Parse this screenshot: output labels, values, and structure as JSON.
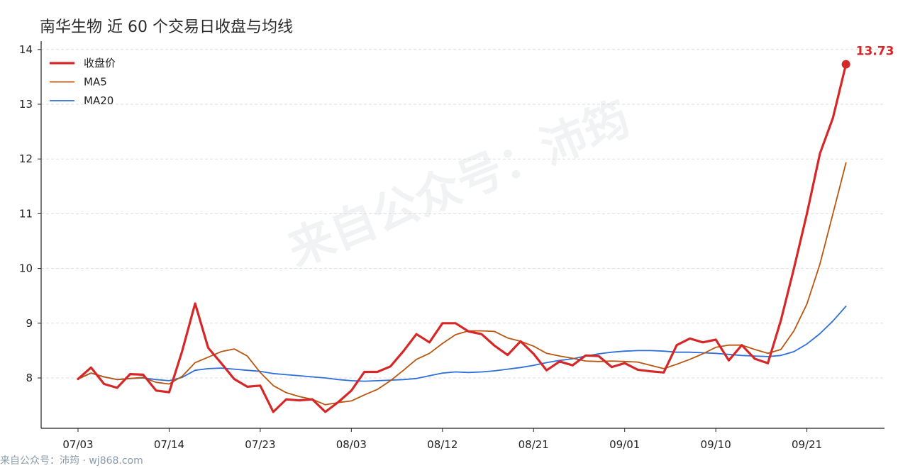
{
  "title": "南华生物 近 60 个交易日收盘与均线",
  "watermark": "来自公众号：沛筠",
  "footer": "来自公众号：沛筠 · wj868.com",
  "colors": {
    "close": "#d62728",
    "ma5": "#b8560f",
    "ma20": "#2f6fdb",
    "grid": "#dddddd",
    "axis": "#222222"
  },
  "chart_data": {
    "type": "line",
    "title": "南华生物 近 60 个交易日收盘与均线",
    "xlabel": "",
    "ylabel": "",
    "ylim": [
      7.1,
      14.1
    ],
    "yticks": [
      8,
      9,
      10,
      11,
      12,
      13,
      14
    ],
    "xticks": [
      {
        "index": 0,
        "label": "07/03"
      },
      {
        "index": 7,
        "label": "07/14"
      },
      {
        "index": 14,
        "label": "07/23"
      },
      {
        "index": 21,
        "label": "08/03"
      },
      {
        "index": 28,
        "label": "08/12"
      },
      {
        "index": 35,
        "label": "08/21"
      },
      {
        "index": 42,
        "label": "09/01"
      },
      {
        "index": 49,
        "label": "09/10"
      },
      {
        "index": 56,
        "label": "09/21"
      }
    ],
    "grid": "horizontal-dashed",
    "legend_position": "top-left",
    "last_value_label": "13.73",
    "series": [
      {
        "name": "收盘价",
        "values": [
          7.98,
          8.19,
          7.89,
          7.82,
          8.07,
          8.06,
          7.77,
          7.74,
          8.49,
          9.36,
          8.55,
          8.27,
          7.98,
          7.84,
          7.86,
          7.38,
          7.61,
          7.59,
          7.61,
          7.38,
          7.56,
          7.77,
          8.11,
          8.11,
          8.21,
          8.49,
          8.8,
          8.65,
          9.0,
          9.0,
          8.85,
          8.8,
          8.59,
          8.42,
          8.67,
          8.44,
          8.14,
          8.3,
          8.23,
          8.41,
          8.4,
          8.2,
          8.27,
          8.15,
          8.12,
          8.1,
          8.6,
          8.72,
          8.65,
          8.7,
          8.32,
          8.6,
          8.35,
          8.27,
          9.05,
          10.0,
          11.0,
          12.1,
          12.75,
          13.73
        ]
      },
      {
        "name": "MA5",
        "values": [
          7.98,
          8.09,
          8.02,
          7.97,
          7.99,
          8.01,
          7.92,
          7.89,
          8.03,
          8.28,
          8.38,
          8.48,
          8.53,
          8.4,
          8.1,
          7.86,
          7.73,
          7.66,
          7.61,
          7.51,
          7.55,
          7.58,
          7.69,
          7.79,
          7.95,
          8.14,
          8.34,
          8.45,
          8.63,
          8.79,
          8.86,
          8.86,
          8.85,
          8.73,
          8.67,
          8.58,
          8.45,
          8.4,
          8.36,
          8.31,
          8.3,
          8.31,
          8.3,
          8.29,
          8.23,
          8.17,
          8.25,
          8.34,
          8.44,
          8.56,
          8.6,
          8.6,
          8.52,
          8.45,
          8.52,
          8.86,
          9.35,
          10.08,
          11.0,
          11.93
        ]
      },
      {
        "name": "MA20",
        "values": [
          7.98,
          8.09,
          8.02,
          7.97,
          7.99,
          8.0,
          7.97,
          7.95,
          8.01,
          8.14,
          8.17,
          8.18,
          8.16,
          8.14,
          8.12,
          8.08,
          8.06,
          8.04,
          8.02,
          8.0,
          7.97,
          7.95,
          7.94,
          7.95,
          7.96,
          7.97,
          7.99,
          8.04,
          8.09,
          8.11,
          8.1,
          8.11,
          8.13,
          8.16,
          8.19,
          8.23,
          8.28,
          8.32,
          8.35,
          8.4,
          8.44,
          8.47,
          8.49,
          8.5,
          8.5,
          8.49,
          8.47,
          8.47,
          8.46,
          8.45,
          8.43,
          8.41,
          8.4,
          8.39,
          8.41,
          8.48,
          8.62,
          8.81,
          9.04,
          9.31
        ]
      }
    ]
  }
}
